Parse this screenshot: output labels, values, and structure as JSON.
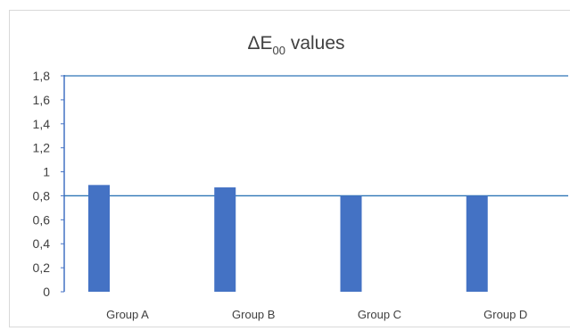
{
  "chart_data": {
    "type": "bar",
    "title": "ΔE00 values",
    "title_main": "ΔE",
    "title_subscript": "00",
    "title_suffix": " values",
    "categories": [
      "Group A",
      "Group B",
      "Group C",
      "Group D"
    ],
    "values": [
      0.89,
      0.87,
      0.8,
      0.8
    ],
    "ylim": [
      0,
      1.8
    ],
    "yticks": [
      "0",
      "0,2",
      "0,4",
      "0,6",
      "0,8",
      "1",
      "1,2",
      "1,4",
      "1,6",
      "1,8"
    ],
    "reference_lines": [
      1.8,
      0.8
    ],
    "xlabel": "",
    "ylabel": "",
    "grid": false,
    "legend": "none",
    "colors": {
      "bar": "#4472c4",
      "reference_line": "#2e75b6",
      "axis": "#4472c4",
      "text": "#404040",
      "frame": "#d9d9d9"
    }
  }
}
